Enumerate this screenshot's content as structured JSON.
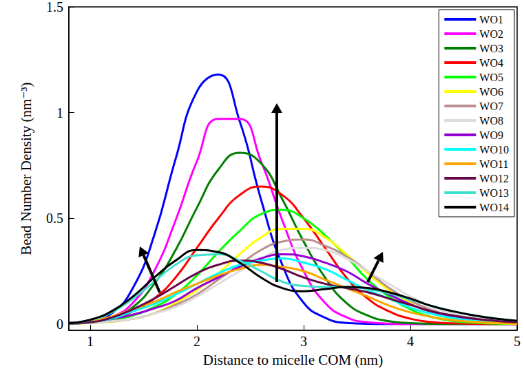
{
  "chart_data": {
    "type": "line",
    "x_label": "Distance to micelle COM (nm)",
    "y_label": "Bead Number Density (nm⁻³)",
    "xlim": [
      0.8,
      5
    ],
    "xticks": [
      1,
      2,
      3,
      4,
      5
    ],
    "ylim": [
      -0.03,
      1.5
    ],
    "yticks": [
      0,
      0.5,
      1,
      1.5
    ],
    "grid": false,
    "legend": "upper right",
    "x": [
      0.8,
      1.0,
      1.2,
      1.4,
      1.6,
      1.8,
      2.0,
      2.2,
      2.4,
      2.6,
      2.8,
      3.0,
      3.2,
      3.4,
      3.6,
      3.8,
      4.0,
      4.2,
      4.4,
      4.6,
      4.8,
      5.0
    ],
    "series": [
      {
        "name": "WO1",
        "color": "#0000ff",
        "values": [
          0.002,
          0.012,
          0.05,
          0.17,
          0.42,
          0.78,
          1.1,
          1.18,
          0.96,
          0.59,
          0.28,
          0.1,
          0.03,
          0.005,
          0.001,
          0,
          0,
          0,
          0,
          0,
          0,
          0
        ]
      },
      {
        "name": "WO2",
        "color": "#ff00ff",
        "values": [
          0.002,
          0.008,
          0.032,
          0.1,
          0.25,
          0.49,
          0.77,
          0.97,
          0.97,
          0.77,
          0.49,
          0.25,
          0.1,
          0.032,
          0.008,
          0.002,
          0,
          0,
          0,
          0,
          0,
          0
        ]
      },
      {
        "name": "WO3",
        "color": "#008000",
        "values": [
          0.003,
          0.01,
          0.03,
          0.08,
          0.19,
          0.35,
          0.55,
          0.73,
          0.81,
          0.76,
          0.59,
          0.39,
          0.22,
          0.1,
          0.04,
          0.013,
          0.004,
          0.001,
          0,
          0,
          0,
          0
        ]
      },
      {
        "name": "WO4",
        "color": "#ff0000",
        "values": [
          0.003,
          0.009,
          0.025,
          0.06,
          0.12,
          0.22,
          0.36,
          0.5,
          0.61,
          0.65,
          0.61,
          0.5,
          0.36,
          0.22,
          0.12,
          0.06,
          0.025,
          0.009,
          0.003,
          0.001,
          0,
          0
        ]
      },
      {
        "name": "WO5",
        "color": "#00ff00",
        "values": [
          0.002,
          0.007,
          0.017,
          0.04,
          0.08,
          0.14,
          0.23,
          0.34,
          0.44,
          0.52,
          0.54,
          0.5,
          0.42,
          0.32,
          0.21,
          0.13,
          0.07,
          0.033,
          0.014,
          0.006,
          0.002,
          0.001
        ]
      },
      {
        "name": "WO6",
        "color": "#ffff00",
        "values": [
          0.001,
          0.004,
          0.011,
          0.025,
          0.05,
          0.1,
          0.16,
          0.24,
          0.33,
          0.41,
          0.45,
          0.45,
          0.41,
          0.33,
          0.24,
          0.16,
          0.1,
          0.05,
          0.025,
          0.011,
          0.004,
          0.001
        ]
      },
      {
        "name": "WO7",
        "color": "#bc8f8f",
        "values": [
          0.002,
          0.005,
          0.012,
          0.025,
          0.05,
          0.09,
          0.14,
          0.21,
          0.28,
          0.35,
          0.39,
          0.4,
          0.37,
          0.32,
          0.25,
          0.17,
          0.11,
          0.066,
          0.036,
          0.017,
          0.008,
          0.003
        ]
      },
      {
        "name": "WO8",
        "color": "#dcdcdc",
        "values": [
          0.003,
          0.006,
          0.013,
          0.026,
          0.05,
          0.08,
          0.13,
          0.19,
          0.25,
          0.31,
          0.35,
          0.36,
          0.35,
          0.31,
          0.25,
          0.19,
          0.13,
          0.08,
          0.05,
          0.026,
          0.013,
          0.006
        ]
      },
      {
        "name": "WO9",
        "color": "#9400d3",
        "values": [
          0.006,
          0.012,
          0.024,
          0.044,
          0.074,
          0.11,
          0.17,
          0.22,
          0.27,
          0.31,
          0.33,
          0.32,
          0.29,
          0.25,
          0.19,
          0.14,
          0.093,
          0.057,
          0.033,
          0.017,
          0.008,
          0.004
        ]
      },
      {
        "name": "WO10",
        "color": "#00ffff",
        "values": [
          0.002,
          0.008,
          0.025,
          0.06,
          0.095,
          0.14,
          0.19,
          0.24,
          0.28,
          0.3,
          0.31,
          0.29,
          0.26,
          0.21,
          0.16,
          0.12,
          0.077,
          0.048,
          0.028,
          0.015,
          0.008,
          0.004
        ]
      },
      {
        "name": "WO11",
        "color": "#ffa500",
        "values": [
          0.004,
          0.012,
          0.035,
          0.07,
          0.105,
          0.15,
          0.19,
          0.23,
          0.26,
          0.28,
          0.27,
          0.25,
          0.21,
          0.17,
          0.13,
          0.087,
          0.055,
          0.033,
          0.018,
          0.01,
          0.005,
          0.002
        ]
      },
      {
        "name": "WO12",
        "color": "#670748",
        "values": [
          0.002,
          0.008,
          0.03,
          0.07,
          0.12,
          0.18,
          0.24,
          0.28,
          0.3,
          0.29,
          0.26,
          0.22,
          0.19,
          0.17,
          0.15,
          0.12,
          0.09,
          0.06,
          0.04,
          0.025,
          0.015,
          0.008
        ]
      },
      {
        "name": "WO13",
        "color": "#40e0d0",
        "values": [
          0.003,
          0.018,
          0.055,
          0.12,
          0.2,
          0.28,
          0.325,
          0.33,
          0.3,
          0.25,
          0.2,
          0.18,
          0.175,
          0.175,
          0.165,
          0.145,
          0.115,
          0.085,
          0.06,
          0.04,
          0.025,
          0.015
        ]
      },
      {
        "name": "WO14",
        "color": "#000000",
        "values": [
          0.003,
          0.02,
          0.06,
          0.13,
          0.22,
          0.3,
          0.35,
          0.34,
          0.29,
          0.22,
          0.17,
          0.155,
          0.165,
          0.175,
          0.17,
          0.15,
          0.12,
          0.085,
          0.06,
          0.04,
          0.025,
          0.015
        ]
      }
    ]
  }
}
